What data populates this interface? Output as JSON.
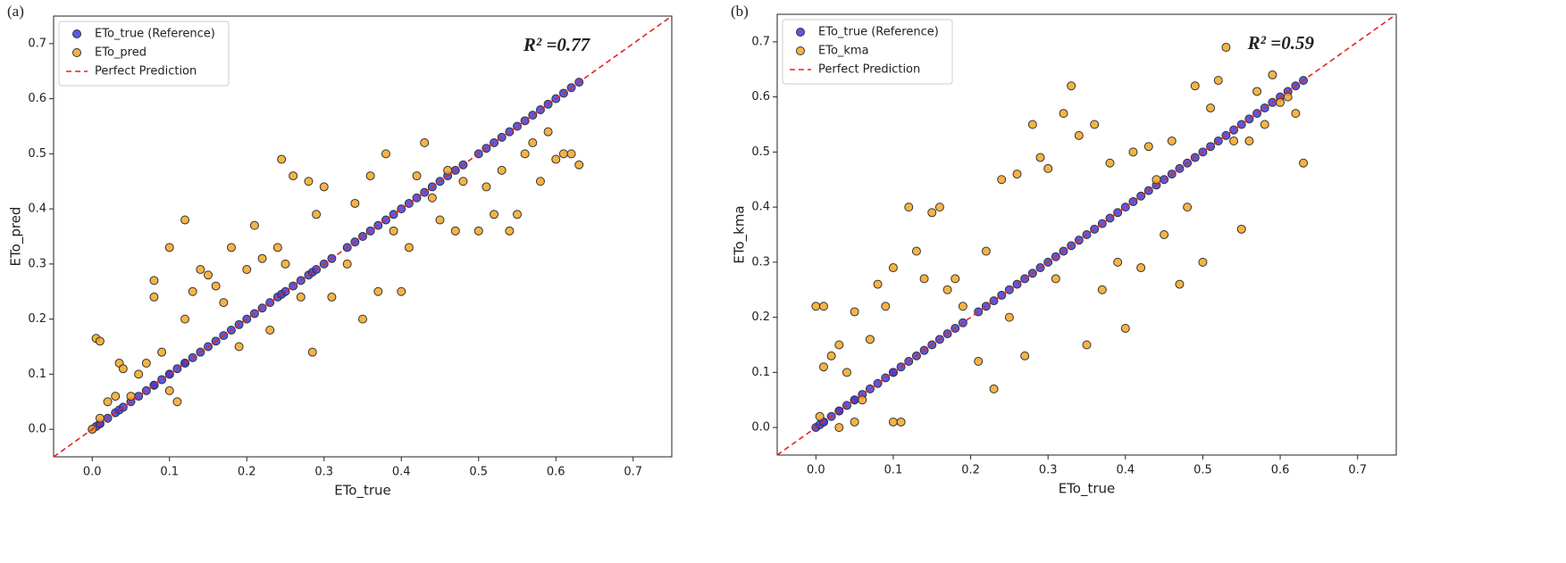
{
  "chart_data": [
    {
      "type": "scatter",
      "panel_label": "(a)",
      "annotation": "R² =0.77",
      "xlabel": "ETo_true",
      "ylabel": "ETo_pred",
      "legend": "upper left",
      "xlim": [
        -0.05,
        0.75
      ],
      "ylim": [
        -0.05,
        0.75
      ],
      "xticks": [
        {
          "value": 0,
          "label": "0.0"
        },
        0.1,
        0.2,
        0.3,
        0.4,
        0.5,
        0.6,
        0.7
      ],
      "yticks": [
        {
          "value": 0,
          "label": "0.0"
        },
        0.1,
        0.2,
        0.3,
        0.4,
        0.5,
        0.6,
        0.7
      ],
      "reference_line": {
        "name": "Perfect Prediction",
        "color": "#e8231f",
        "style": "dashed"
      },
      "x": [
        0.0,
        0.005,
        0.01,
        0.01,
        0.02,
        0.03,
        0.035,
        0.04,
        0.05,
        0.06,
        0.07,
        0.08,
        0.08,
        0.09,
        0.1,
        0.1,
        0.11,
        0.12,
        0.12,
        0.13,
        0.14,
        0.15,
        0.16,
        0.17,
        0.18,
        0.19,
        0.2,
        0.21,
        0.22,
        0.23,
        0.24,
        0.245,
        0.25,
        0.26,
        0.27,
        0.28,
        0.285,
        0.29,
        0.3,
        0.31,
        0.33,
        0.34,
        0.35,
        0.36,
        0.37,
        0.38,
        0.39,
        0.4,
        0.41,
        0.42,
        0.43,
        0.44,
        0.45,
        0.46,
        0.47,
        0.48,
        0.5,
        0.51,
        0.52,
        0.53,
        0.54,
        0.55,
        0.56,
        0.57,
        0.58,
        0.59,
        0.6,
        0.61,
        0.62,
        0.63
      ],
      "series": [
        {
          "name": "ETo_true (Reference)",
          "color": "#3c3cdc",
          "values": [
            0.0,
            0.005,
            0.01,
            0.01,
            0.02,
            0.03,
            0.035,
            0.04,
            0.05,
            0.06,
            0.07,
            0.08,
            0.08,
            0.09,
            0.1,
            0.1,
            0.11,
            0.12,
            0.12,
            0.13,
            0.14,
            0.15,
            0.16,
            0.17,
            0.18,
            0.19,
            0.2,
            0.21,
            0.22,
            0.23,
            0.24,
            0.245,
            0.25,
            0.26,
            0.27,
            0.28,
            0.285,
            0.29,
            0.3,
            0.31,
            0.33,
            0.34,
            0.35,
            0.36,
            0.37,
            0.38,
            0.39,
            0.4,
            0.41,
            0.42,
            0.43,
            0.44,
            0.45,
            0.46,
            0.47,
            0.48,
            0.5,
            0.51,
            0.52,
            0.53,
            0.54,
            0.55,
            0.56,
            0.57,
            0.58,
            0.59,
            0.6,
            0.61,
            0.62,
            0.63
          ]
        },
        {
          "name": "ETo_pred",
          "color": "#f5a623",
          "values": [
            0.0,
            0.165,
            0.02,
            0.16,
            0.05,
            0.06,
            0.12,
            0.11,
            0.06,
            0.1,
            0.12,
            0.27,
            0.24,
            0.14,
            0.33,
            0.07,
            0.05,
            0.38,
            0.2,
            0.25,
            0.29,
            0.28,
            0.26,
            0.23,
            0.33,
            0.15,
            0.29,
            0.37,
            0.31,
            0.18,
            0.33,
            0.49,
            0.3,
            0.46,
            0.24,
            0.45,
            0.14,
            0.39,
            0.44,
            0.24,
            0.3,
            0.41,
            0.2,
            0.46,
            0.25,
            0.5,
            0.36,
            0.25,
            0.33,
            0.46,
            0.52,
            0.42,
            0.38,
            0.47,
            0.36,
            0.45,
            0.36,
            0.44,
            0.39,
            0.47,
            0.36,
            0.39,
            0.5,
            0.52,
            0.45,
            0.54,
            0.49,
            0.5,
            0.5,
            0.48
          ]
        }
      ]
    },
    {
      "type": "scatter",
      "panel_label": "(b)",
      "annotation": "R² =0.59",
      "xlabel": "ETo_true",
      "ylabel": "ETo_kma",
      "legend": "upper left",
      "xlim": [
        -0.05,
        0.75
      ],
      "ylim": [
        -0.05,
        0.75
      ],
      "xticks": [
        {
          "value": 0,
          "label": "0.0"
        },
        0.1,
        0.2,
        0.3,
        0.4,
        0.5,
        0.6,
        0.7
      ],
      "yticks": [
        {
          "value": 0,
          "label": "0.0"
        },
        0.1,
        0.2,
        0.3,
        0.4,
        0.5,
        0.6,
        0.7
      ],
      "reference_line": {
        "name": "Perfect Prediction",
        "color": "#e8231f",
        "style": "dashed"
      },
      "x": [
        0.0,
        0.005,
        0.01,
        0.01,
        0.02,
        0.03,
        0.03,
        0.04,
        0.05,
        0.05,
        0.06,
        0.07,
        0.08,
        0.09,
        0.1,
        0.1,
        0.11,
        0.12,
        0.13,
        0.14,
        0.15,
        0.16,
        0.17,
        0.18,
        0.19,
        0.21,
        0.22,
        0.23,
        0.24,
        0.25,
        0.26,
        0.27,
        0.28,
        0.29,
        0.3,
        0.31,
        0.32,
        0.33,
        0.34,
        0.35,
        0.36,
        0.37,
        0.38,
        0.39,
        0.4,
        0.41,
        0.42,
        0.43,
        0.44,
        0.45,
        0.46,
        0.47,
        0.48,
        0.49,
        0.5,
        0.51,
        0.52,
        0.53,
        0.54,
        0.55,
        0.56,
        0.57,
        0.58,
        0.59,
        0.6,
        0.61,
        0.62,
        0.63
      ],
      "series": [
        {
          "name": "ETo_true (Reference)",
          "color": "#3c3cdc",
          "values": [
            0.0,
            0.005,
            0.01,
            0.01,
            0.02,
            0.03,
            0.03,
            0.04,
            0.05,
            0.05,
            0.06,
            0.07,
            0.08,
            0.09,
            0.1,
            0.1,
            0.11,
            0.12,
            0.13,
            0.14,
            0.15,
            0.16,
            0.17,
            0.18,
            0.19,
            0.21,
            0.22,
            0.23,
            0.24,
            0.25,
            0.26,
            0.27,
            0.28,
            0.29,
            0.3,
            0.31,
            0.32,
            0.33,
            0.34,
            0.35,
            0.36,
            0.37,
            0.38,
            0.39,
            0.4,
            0.41,
            0.42,
            0.43,
            0.44,
            0.45,
            0.46,
            0.47,
            0.48,
            0.49,
            0.5,
            0.51,
            0.52,
            0.53,
            0.54,
            0.55,
            0.56,
            0.57,
            0.58,
            0.59,
            0.6,
            0.61,
            0.62,
            0.63
          ]
        },
        {
          "name": "ETo_kma",
          "color": "#f5a623",
          "values": [
            0.22,
            0.02,
            0.11,
            0.22,
            0.13,
            0.15,
            0.0,
            0.1,
            0.21,
            0.01,
            0.05,
            0.16,
            0.26,
            0.22,
            0.29,
            0.01,
            0.01,
            0.4,
            0.32,
            0.27,
            0.39,
            0.4,
            0.25,
            0.27,
            0.22,
            0.12,
            0.32,
            0.07,
            0.45,
            0.2,
            0.46,
            0.13,
            0.55,
            0.49,
            0.47,
            0.27,
            0.57,
            0.62,
            0.53,
            0.15,
            0.55,
            0.25,
            0.48,
            0.3,
            0.18,
            0.5,
            0.29,
            0.51,
            0.45,
            0.35,
            0.52,
            0.26,
            0.4,
            0.62,
            0.3,
            0.58,
            0.63,
            0.69,
            0.52,
            0.36,
            0.52,
            0.61,
            0.55,
            0.64,
            0.59,
            0.6,
            0.57,
            0.48
          ]
        }
      ]
    }
  ]
}
